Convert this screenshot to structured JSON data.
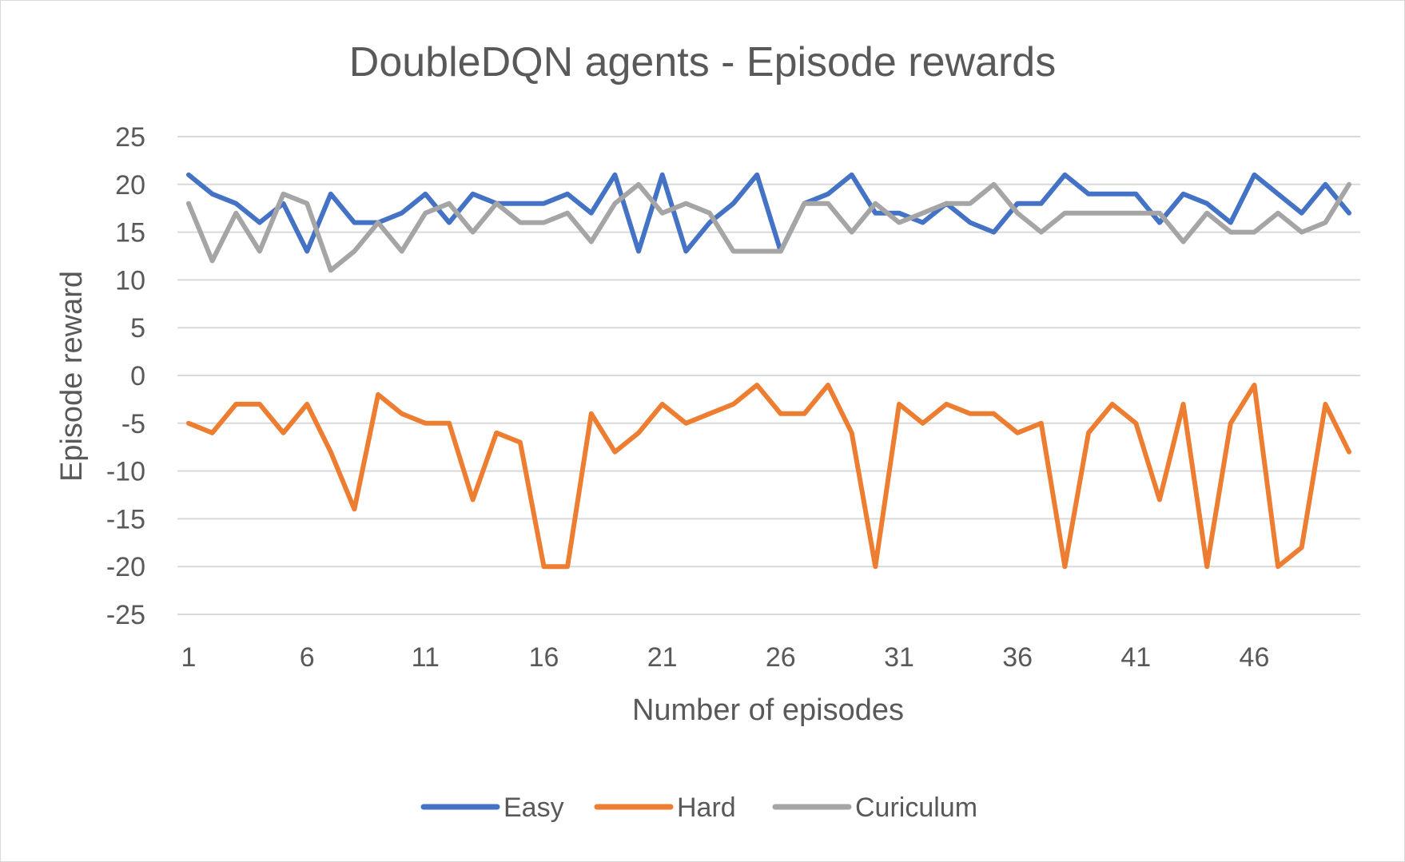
{
  "chart_data": {
    "type": "line",
    "title": "DoubleDQN agents - Episode rewards",
    "xlabel": "Number of episodes",
    "ylabel": "Episode reward",
    "ylim": [
      -25,
      25
    ],
    "yticks": [
      25,
      20,
      15,
      10,
      5,
      0,
      -5,
      -10,
      -15,
      -20,
      -25
    ],
    "xticks": [
      1,
      6,
      11,
      16,
      21,
      26,
      31,
      36,
      41,
      46
    ],
    "x": [
      1,
      2,
      3,
      4,
      5,
      6,
      7,
      8,
      9,
      10,
      11,
      12,
      13,
      14,
      15,
      16,
      17,
      18,
      19,
      20,
      21,
      22,
      23,
      24,
      25,
      26,
      27,
      28,
      29,
      30,
      31,
      32,
      33,
      34,
      35,
      36,
      37,
      38,
      39,
      40,
      41,
      42,
      43,
      44,
      45,
      46,
      47,
      48,
      49,
      50
    ],
    "grid": true,
    "legend_position": "bottom",
    "series": [
      {
        "name": "Easy",
        "color": "#4472C4",
        "values": [
          21,
          19,
          18,
          16,
          18,
          13,
          19,
          16,
          16,
          17,
          19,
          16,
          19,
          18,
          18,
          18,
          19,
          17,
          21,
          13,
          21,
          13,
          16,
          18,
          21,
          13,
          18,
          19,
          21,
          17,
          17,
          16,
          18,
          16,
          15,
          18,
          18,
          21,
          19,
          19,
          19,
          16,
          19,
          18,
          16,
          21,
          19,
          17,
          20,
          17
        ]
      },
      {
        "name": "Hard",
        "color": "#ED7D31",
        "values": [
          -5,
          -6,
          -3,
          -3,
          -6,
          -3,
          -8,
          -14,
          -2,
          -4,
          -5,
          -5,
          -13,
          -6,
          -7,
          -20,
          -20,
          -4,
          -8,
          -6,
          -3,
          -5,
          -4,
          -3,
          -1,
          -4,
          -4,
          -1,
          -6,
          -20,
          -3,
          -5,
          -3,
          -4,
          -4,
          -6,
          -5,
          -20,
          -6,
          -3,
          -5,
          -13,
          -3,
          -20,
          -5,
          -1,
          -20,
          -18,
          -3,
          -8
        ]
      },
      {
        "name": "Curiculum",
        "color": "#A5A5A5",
        "values": [
          18,
          12,
          17,
          13,
          19,
          18,
          11,
          13,
          16,
          13,
          17,
          18,
          15,
          18,
          16,
          16,
          17,
          14,
          18,
          20,
          17,
          18,
          17,
          13,
          13,
          13,
          18,
          18,
          15,
          18,
          16,
          17,
          18,
          18,
          20,
          17,
          15,
          17,
          17,
          17,
          17,
          17,
          14,
          17,
          15,
          15,
          17,
          15,
          16,
          20
        ]
      }
    ]
  }
}
